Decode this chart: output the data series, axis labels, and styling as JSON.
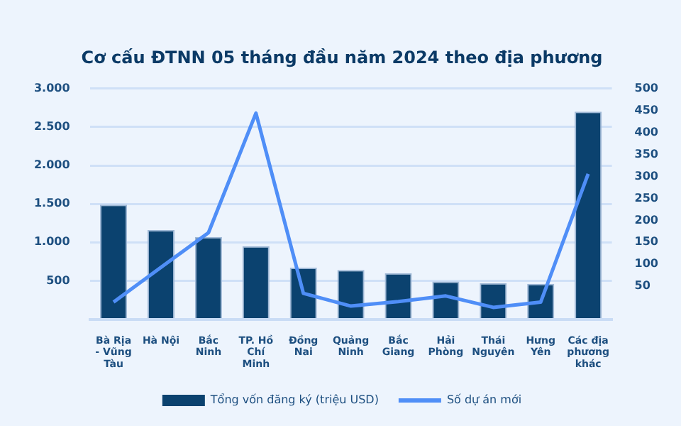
{
  "chart_data": {
    "type": "bar",
    "title": "Cơ cấu ĐTNN 05 tháng đầu năm 2024 theo địa phương",
    "categories": [
      "Bà Rịa - Vũng Tàu",
      "Hà Nội",
      "Bắc Ninh",
      "TP. Hồ Chí Minh",
      "Đồng Nai",
      "Quảng Ninh",
      "Bắc Giang",
      "Hải Phòng",
      "Thái Nguyên",
      "Hưng Yên",
      "Các địa phương khác"
    ],
    "series": [
      {
        "name": "Tổng vốn đăng ký (triệu USD)",
        "color": "#0b426f",
        "values": [
          1490,
          1160,
          1070,
          950,
          670,
          640,
          600,
          490,
          470,
          460,
          2700
        ]
      },
      {
        "name": "Số dự án mới",
        "type": "line",
        "axis": "y2",
        "color": "#4f8ef7",
        "values": [
          14,
          93,
          172,
          444,
          34,
          5,
          15,
          28,
          2,
          14,
          306
        ]
      }
    ],
    "ylim": [
      0,
      3000
    ],
    "yticks": [
      {
        "value": 0,
        "label": null
      },
      {
        "value": 500,
        "label": "500"
      },
      {
        "value": 1000,
        "label": "1.000"
      },
      {
        "value": 1500,
        "label": "1.500"
      },
      {
        "value": 2000,
        "label": "2.000"
      },
      {
        "value": 2500,
        "label": "2.500"
      },
      {
        "value": 3000,
        "label": "3.000"
      }
    ],
    "y2lim": [
      -25,
      500
    ],
    "y2ticks": [
      50,
      100,
      150,
      200,
      250,
      300,
      350,
      400,
      450,
      500
    ],
    "grid": "y",
    "legend": "bottom",
    "marker": "none",
    "line_style": "solid"
  }
}
